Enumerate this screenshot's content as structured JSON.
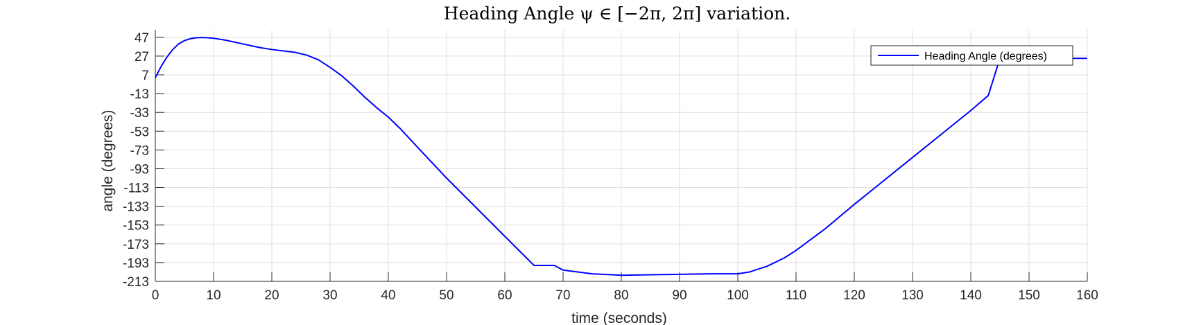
{
  "chart_data": {
    "type": "line",
    "title": "Heading Angle ψ ∈ [−2π, 2π] variation.",
    "xlabel": "time (seconds)",
    "ylabel": "angle (degrees)",
    "xlim": [
      0,
      160
    ],
    "ylim": [
      -213,
      55
    ],
    "x_ticks": [
      0,
      10,
      20,
      30,
      40,
      50,
      60,
      70,
      80,
      90,
      100,
      110,
      120,
      130,
      140,
      150,
      160
    ],
    "y_ticks": [
      -213,
      -193,
      -173,
      -153,
      -133,
      -113,
      -93,
      -73,
      -53,
      -33,
      -13,
      7,
      27,
      47
    ],
    "grid": true,
    "legend_position": "top-right",
    "colors": {
      "series": "#0000ff",
      "grid": "#dfdfdf",
      "axis": "#262626"
    },
    "series": [
      {
        "name": "Heading Angle (degrees)",
        "x": [
          0,
          1,
          2,
          3,
          4,
          5,
          6,
          7,
          8,
          9,
          10,
          12,
          15,
          18,
          20,
          22,
          24,
          26,
          28,
          30,
          32,
          34,
          36,
          38,
          40,
          42,
          45,
          50,
          55,
          60,
          65,
          68.5,
          70,
          75,
          80,
          85,
          90,
          95,
          100,
          102,
          105,
          108,
          110,
          115,
          120,
          125,
          130,
          135,
          140,
          143,
          145,
          150,
          155,
          160
        ],
        "y": [
          4,
          16,
          26,
          34,
          40,
          43.5,
          45.5,
          46.5,
          46.8,
          46.5,
          46,
          44,
          40,
          36,
          34,
          32.5,
          31,
          28,
          23,
          15,
          6,
          -5,
          -17,
          -28,
          -38,
          -50,
          -70,
          -103,
          -134,
          -165,
          -196,
          -196,
          -201,
          -205,
          -206.5,
          -206,
          -205.5,
          -205,
          -205,
          -203,
          -197,
          -188,
          -180,
          -157,
          -131,
          -106,
          -81,
          -56,
          -31,
          -15,
          24.5,
          24.5,
          24.5,
          24.5
        ]
      }
    ]
  }
}
